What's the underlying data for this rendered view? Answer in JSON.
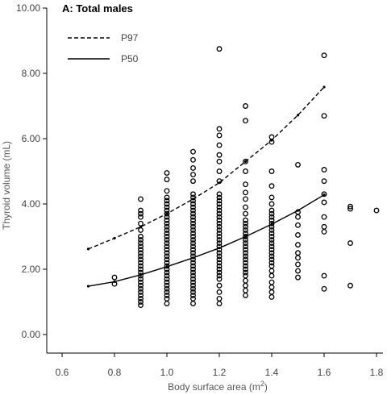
{
  "chart_data": {
    "type": "scatter",
    "title": "A: Total males",
    "xlabel": "Body surface area (m",
    "xlabel_sup": "2",
    "xlabel_suffix": ")",
    "ylabel": "Thyroid volume (mL)",
    "xlim": [
      0.55,
      1.85
    ],
    "ylim": [
      -0.5,
      10.0
    ],
    "x_ticks": [
      0.6,
      0.8,
      1.0,
      1.2,
      1.4,
      1.6,
      1.8
    ],
    "x_tick_labels": [
      "0.6",
      "0.8",
      "1.0",
      "1.2",
      "1.4",
      "1.6",
      "1.8"
    ],
    "y_ticks": [
      0,
      2,
      4,
      6,
      8,
      10
    ],
    "y_tick_labels": [
      "0.00",
      "2.00",
      "4.00",
      "6.00",
      "8.00",
      "10.00"
    ],
    "grid": false,
    "legend_position": "top-left",
    "series": [
      {
        "name": "P97",
        "style": "dashed",
        "color": "#000000",
        "x": [
          0.7,
          0.8,
          0.9,
          1.0,
          1.1,
          1.2,
          1.3,
          1.4,
          1.5,
          1.6
        ],
        "y": [
          2.62,
          2.95,
          3.3,
          3.7,
          4.15,
          4.65,
          5.3,
          5.95,
          6.72,
          7.58
        ]
      },
      {
        "name": "P50",
        "style": "solid",
        "color": "#000000",
        "x": [
          0.7,
          0.8,
          0.9,
          1.0,
          1.1,
          1.2,
          1.3,
          1.4,
          1.5,
          1.6
        ],
        "y": [
          1.48,
          1.62,
          1.83,
          2.08,
          2.35,
          2.65,
          3.0,
          3.38,
          3.8,
          4.28
        ]
      }
    ],
    "scatter_columns": [
      {
        "x": 0.8,
        "y": [
          1.55,
          1.75
        ]
      },
      {
        "x": 0.9,
        "y": [
          0.9,
          1.0,
          1.1,
          1.2,
          1.3,
          1.4,
          1.5,
          1.6,
          1.7,
          1.8,
          1.9,
          2.0,
          2.1,
          2.2,
          2.3,
          2.4,
          2.5,
          2.6,
          2.7,
          2.8,
          2.9,
          3.0,
          3.2,
          3.4,
          3.6,
          3.7,
          3.8,
          4.15
        ]
      },
      {
        "x": 1.0,
        "y": [
          0.95,
          1.1,
          1.2,
          1.3,
          1.4,
          1.5,
          1.6,
          1.7,
          1.8,
          1.9,
          2.0,
          2.1,
          2.2,
          2.3,
          2.4,
          2.5,
          2.6,
          2.7,
          2.8,
          2.9,
          3.0,
          3.1,
          3.2,
          3.3,
          3.4,
          3.5,
          3.6,
          3.7,
          3.8,
          3.9,
          4.0,
          4.1,
          4.2,
          4.4,
          4.75,
          4.95
        ]
      },
      {
        "x": 1.1,
        "y": [
          0.95,
          1.1,
          1.2,
          1.3,
          1.4,
          1.5,
          1.6,
          1.7,
          1.8,
          1.9,
          2.0,
          2.1,
          2.2,
          2.3,
          2.4,
          2.5,
          2.6,
          2.7,
          2.8,
          2.9,
          3.0,
          3.1,
          3.2,
          3.3,
          3.4,
          3.5,
          3.6,
          3.7,
          3.8,
          3.9,
          4.0,
          4.1,
          4.2,
          4.3,
          4.7,
          4.9,
          5.1,
          5.35,
          5.6
        ]
      },
      {
        "x": 1.2,
        "y": [
          0.95,
          1.1,
          1.3,
          1.5,
          1.7,
          1.8,
          1.9,
          2.0,
          2.1,
          2.2,
          2.3,
          2.4,
          2.5,
          2.6,
          2.7,
          2.8,
          2.9,
          3.0,
          3.1,
          3.2,
          3.3,
          3.4,
          3.5,
          3.6,
          3.7,
          3.8,
          3.9,
          4.0,
          4.1,
          4.2,
          4.3,
          4.7,
          5.0,
          5.3,
          5.5,
          5.8,
          6.1,
          6.3,
          8.75
        ]
      },
      {
        "x": 1.3,
        "y": [
          1.2,
          1.35,
          1.5,
          1.65,
          1.8,
          1.9,
          2.0,
          2.1,
          2.2,
          2.3,
          2.4,
          2.5,
          2.6,
          2.7,
          2.8,
          2.9,
          3.0,
          3.1,
          3.2,
          3.3,
          3.4,
          3.5,
          3.7,
          3.9,
          4.15,
          4.35,
          4.6,
          5.0,
          5.3,
          6.55,
          7.0
        ]
      },
      {
        "x": 1.4,
        "y": [
          1.15,
          1.3,
          1.45,
          1.6,
          1.8,
          1.95,
          2.1,
          2.2,
          2.3,
          2.4,
          2.5,
          2.6,
          2.7,
          2.8,
          2.9,
          3.0,
          3.1,
          3.2,
          3.3,
          3.4,
          3.5,
          3.6,
          3.7,
          3.8,
          4.0,
          4.2,
          4.55,
          5.0,
          5.9,
          6.05
        ]
      },
      {
        "x": 1.5,
        "y": [
          1.75,
          1.95,
          2.15,
          2.35,
          2.5,
          2.75,
          3.05,
          3.35,
          3.6,
          3.75,
          5.2
        ]
      },
      {
        "x": 1.6,
        "y": [
          1.4,
          1.8,
          3.15,
          3.3,
          3.6,
          4.05,
          4.3,
          4.7,
          5.05,
          6.7,
          8.55
        ]
      },
      {
        "x": 1.7,
        "y": [
          1.5,
          2.8,
          3.85,
          3.92
        ]
      },
      {
        "x": 1.8,
        "y": [
          3.8
        ]
      }
    ]
  }
}
